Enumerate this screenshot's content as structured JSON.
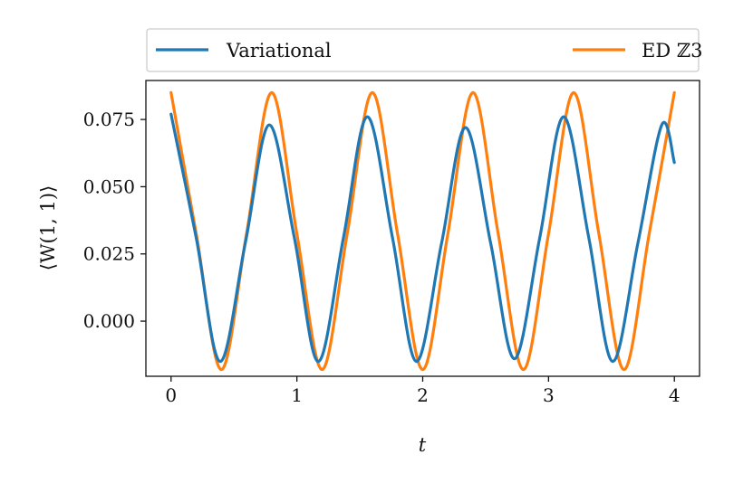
{
  "chart_data": {
    "type": "line",
    "xlabel": "t",
    "ylabel": "⟨W(1, 1)⟩",
    "xlim": [
      -0.2,
      4.2
    ],
    "ylim": [
      -0.0205,
      0.0895
    ],
    "xticks": [
      0,
      1,
      2,
      3,
      4
    ],
    "xtick_labels": [
      "0",
      "1",
      "2",
      "3",
      "4"
    ],
    "yticks": [
      0.0,
      0.025,
      0.05,
      0.075
    ],
    "ytick_labels": [
      "0.000",
      "0.025",
      "0.050",
      "0.075"
    ],
    "grid": false,
    "legend": {
      "placement": "above-plot",
      "entries": [
        "Variational",
        "ED ℤ3"
      ]
    },
    "series": [
      {
        "name": "Variational",
        "color": "#1f77b4",
        "x": [
          0.0,
          0.2,
          0.39,
          0.59,
          0.78,
          0.98,
          1.17,
          1.37,
          1.56,
          1.76,
          1.95,
          2.15,
          2.34,
          2.54,
          2.73,
          2.93,
          3.12,
          3.32,
          3.51,
          3.71,
          3.9,
          4.0
        ],
        "y": [
          0.077,
          0.031,
          -0.015,
          0.029,
          0.073,
          0.031,
          -0.015,
          0.031,
          0.076,
          0.031,
          -0.015,
          0.029,
          0.072,
          0.029,
          -0.014,
          0.031,
          0.076,
          0.031,
          -0.015,
          0.029,
          0.073,
          0.059
        ]
      },
      {
        "name": "ED ℤ3",
        "color": "#ff7f0e",
        "x": [
          0.0,
          0.2,
          0.4,
          0.6,
          0.8,
          1.0,
          1.2,
          1.4,
          1.6,
          1.8,
          2.0,
          2.2,
          2.4,
          2.6,
          2.8,
          3.0,
          3.2,
          3.4,
          3.6,
          3.8,
          4.0
        ],
        "y": [
          0.085,
          0.0325,
          -0.018,
          0.0325,
          0.085,
          0.0325,
          -0.018,
          0.0325,
          0.085,
          0.0325,
          -0.018,
          0.0325,
          0.085,
          0.0325,
          -0.018,
          0.0325,
          0.085,
          0.0325,
          -0.018,
          0.0325,
          0.085
        ]
      }
    ]
  }
}
